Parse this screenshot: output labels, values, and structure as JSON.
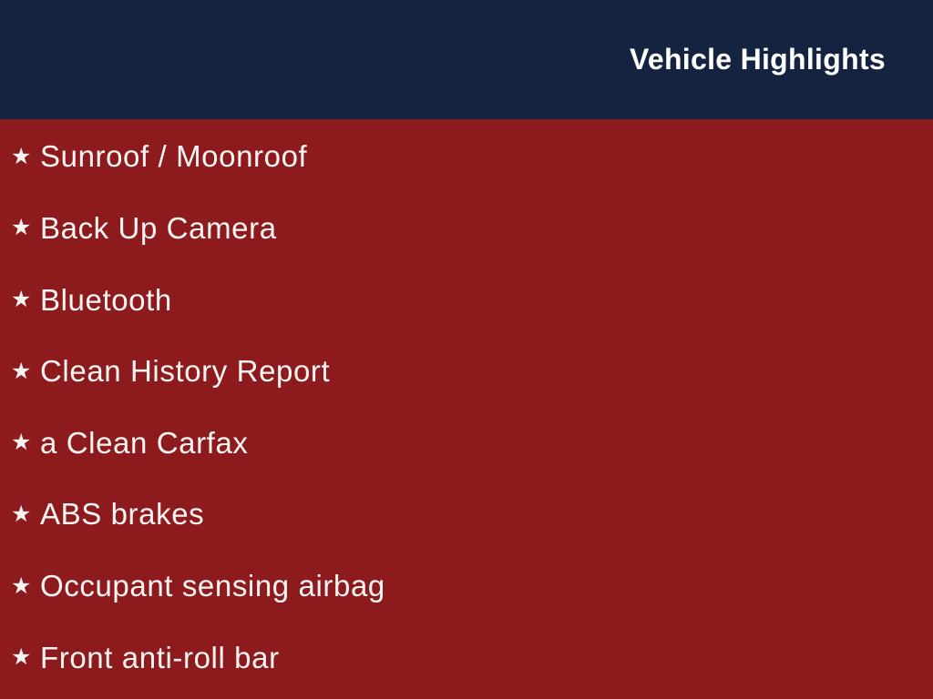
{
  "header": {
    "title": "Vehicle Highlights"
  },
  "list": {
    "bullet_icon": "★",
    "items": [
      "Sunroof / Moonroof",
      "Back Up Camera",
      "Bluetooth",
      "Clean History Report",
      "a Clean Carfax",
      "ABS brakes",
      "Occupant sensing airbag",
      "Front anti-roll bar"
    ]
  },
  "colors": {
    "header_background": "#14233f",
    "header_text": "#ffffff",
    "body_background": "#8d1b1e",
    "body_text": "#faf4f3"
  }
}
